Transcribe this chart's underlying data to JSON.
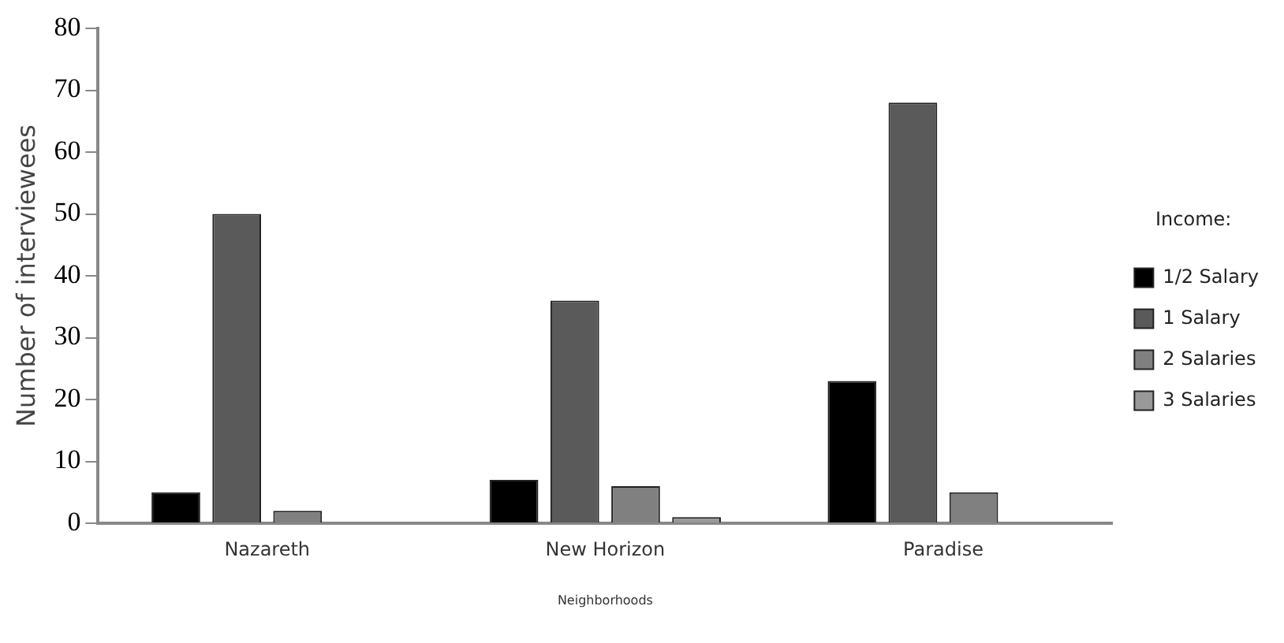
{
  "chart_data": {
    "type": "bar",
    "xlabel": "Neighborhoods",
    "ylabel": "Number of interviewees",
    "legend_title": "Income:",
    "categories": [
      "Nazareth",
      "New Horizon",
      "Paradise"
    ],
    "series": [
      {
        "name": "1/2 Salary",
        "color": "#000000",
        "values": [
          5,
          7,
          23
        ]
      },
      {
        "name": "1 Salary",
        "color": "#5a5a5a",
        "values": [
          50,
          36,
          68
        ]
      },
      {
        "name": "2 Salaries",
        "color": "#808080",
        "values": [
          2,
          6,
          5
        ]
      },
      {
        "name": "3 Salaries",
        "color": "#999999",
        "values": [
          null,
          1,
          null
        ]
      }
    ],
    "ylim": [
      0,
      80
    ],
    "yticks": [
      0,
      10,
      20,
      30,
      40,
      50,
      60,
      70,
      80
    ],
    "grid": false,
    "legend": "right"
  }
}
